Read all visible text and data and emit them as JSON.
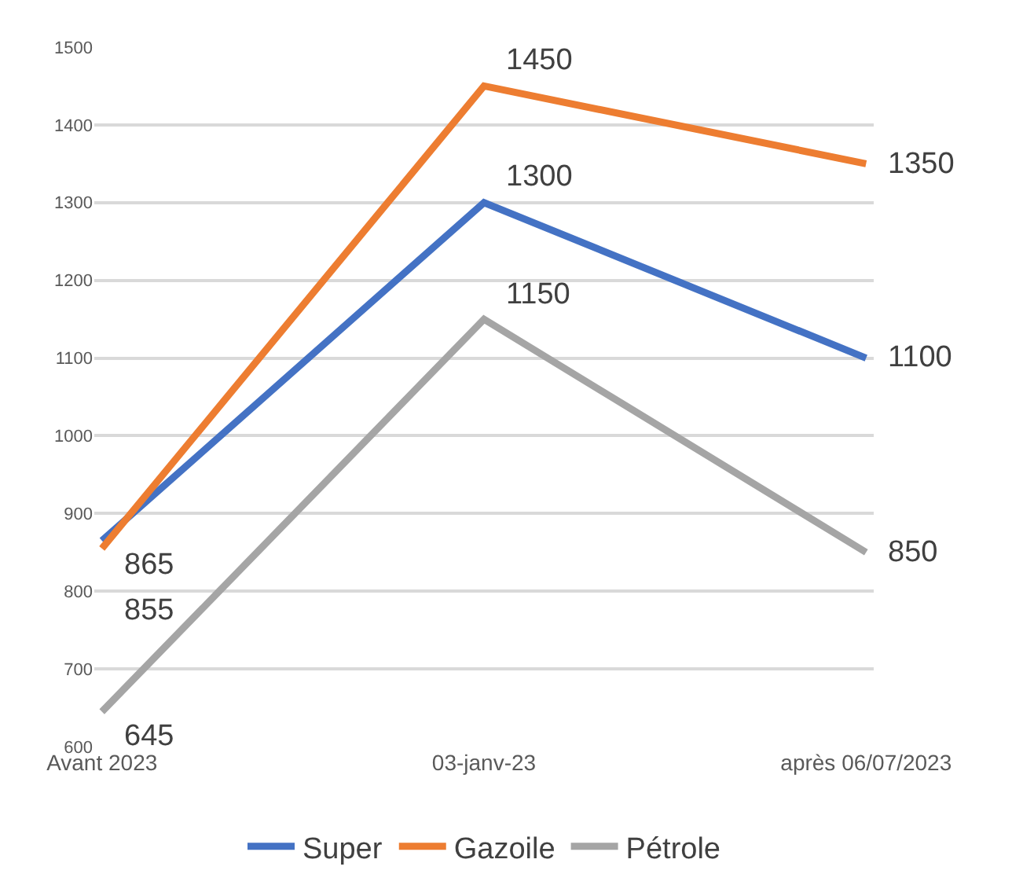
{
  "chart_data": {
    "type": "line",
    "categories": [
      "Avant 2023",
      "03-janv-23",
      "après 06/07/2023"
    ],
    "series": [
      {
        "name": "Super",
        "color": "#4472c4",
        "values": [
          865,
          1300,
          1100
        ]
      },
      {
        "name": "Gazoile",
        "color": "#ed7d31",
        "values": [
          855,
          1450,
          1350
        ]
      },
      {
        "name": "Pétrole",
        "color": "#a5a5a5",
        "values": [
          645,
          1150,
          850
        ]
      }
    ],
    "ylim": [
      600,
      1500
    ],
    "yticks": [
      600,
      700,
      800,
      900,
      1000,
      1100,
      1200,
      1300,
      1400,
      1500
    ],
    "grid": "y",
    "legend": "bottom",
    "data_labels": true,
    "marker": "none",
    "line_style": "solid"
  }
}
